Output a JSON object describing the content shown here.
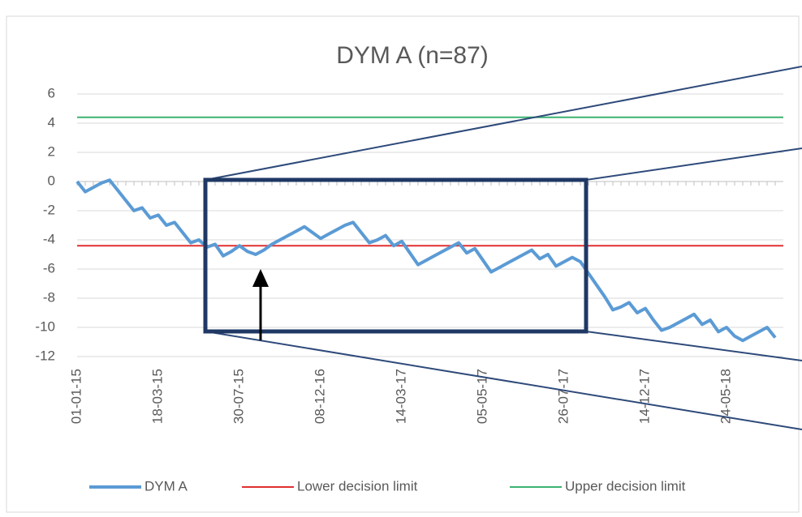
{
  "chart_data": {
    "type": "line",
    "title": "DYM A (n=87)",
    "categories": [
      "01-01-15",
      null,
      null,
      null,
      null,
      null,
      null,
      null,
      null,
      null,
      "18-03-15",
      null,
      null,
      null,
      null,
      null,
      null,
      null,
      null,
      null,
      "30-07-15",
      null,
      null,
      null,
      null,
      null,
      null,
      null,
      null,
      null,
      "08-12-16",
      null,
      null,
      null,
      null,
      null,
      null,
      null,
      null,
      null,
      "14-03-17",
      null,
      null,
      null,
      null,
      null,
      null,
      null,
      null,
      null,
      "05-05-17",
      null,
      null,
      null,
      null,
      null,
      null,
      null,
      null,
      null,
      "26-07-17",
      null,
      null,
      null,
      null,
      null,
      null,
      null,
      null,
      null,
      "14-12-17",
      null,
      null,
      null,
      null,
      null,
      null,
      null,
      null,
      null,
      "24-05-18",
      null,
      null,
      null,
      null,
      null,
      null
    ],
    "series": [
      {
        "name": "DYM A",
        "color": "#5b9bd5",
        "values": [
          0,
          -0.7,
          -0.4,
          -0.1,
          0.1,
          -0.6,
          -1.3,
          -2.0,
          -1.8,
          -2.5,
          -2.3,
          -3.0,
          -2.8,
          -3.5,
          -4.2,
          -4.0,
          -4.5,
          -4.3,
          -5.1,
          -4.8,
          -4.4,
          -4.8,
          -5.0,
          -4.7,
          -4.3,
          -4.0,
          -3.7,
          -3.4,
          -3.1,
          -3.5,
          -3.9,
          -3.6,
          -3.3,
          -3.0,
          -2.8,
          -3.5,
          -4.2,
          -4.0,
          -3.7,
          -4.4,
          -4.1,
          -4.9,
          -5.7,
          -5.4,
          -5.1,
          -4.8,
          -4.5,
          -4.2,
          -4.9,
          -4.6,
          -5.4,
          -6.2,
          -5.9,
          -5.6,
          -5.3,
          -5.0,
          -4.7,
          -5.3,
          -5.0,
          -5.8,
          -5.5,
          -5.2,
          -5.5,
          -6.3,
          -7.1,
          -7.9,
          -8.8,
          -8.6,
          -8.3,
          -9.0,
          -8.7,
          -9.5,
          -10.2,
          -10.0,
          -9.7,
          -9.4,
          -9.1,
          -9.8,
          -9.5,
          -10.3,
          -10.0,
          -10.6,
          -10.9,
          -10.6,
          -10.3,
          -10.0,
          -10.7
        ]
      }
    ],
    "reference_lines": [
      {
        "name": "Lower decision limit",
        "color": "#e03030",
        "value": -4.4
      },
      {
        "name": "Upper decision limit",
        "color": "#3cb371",
        "value": 4.4
      }
    ],
    "ylim": [
      -12,
      6
    ],
    "yticks": [
      -12,
      -10,
      -8,
      -6,
      -4,
      -2,
      0,
      2,
      4,
      6
    ],
    "grid": true
  }
}
